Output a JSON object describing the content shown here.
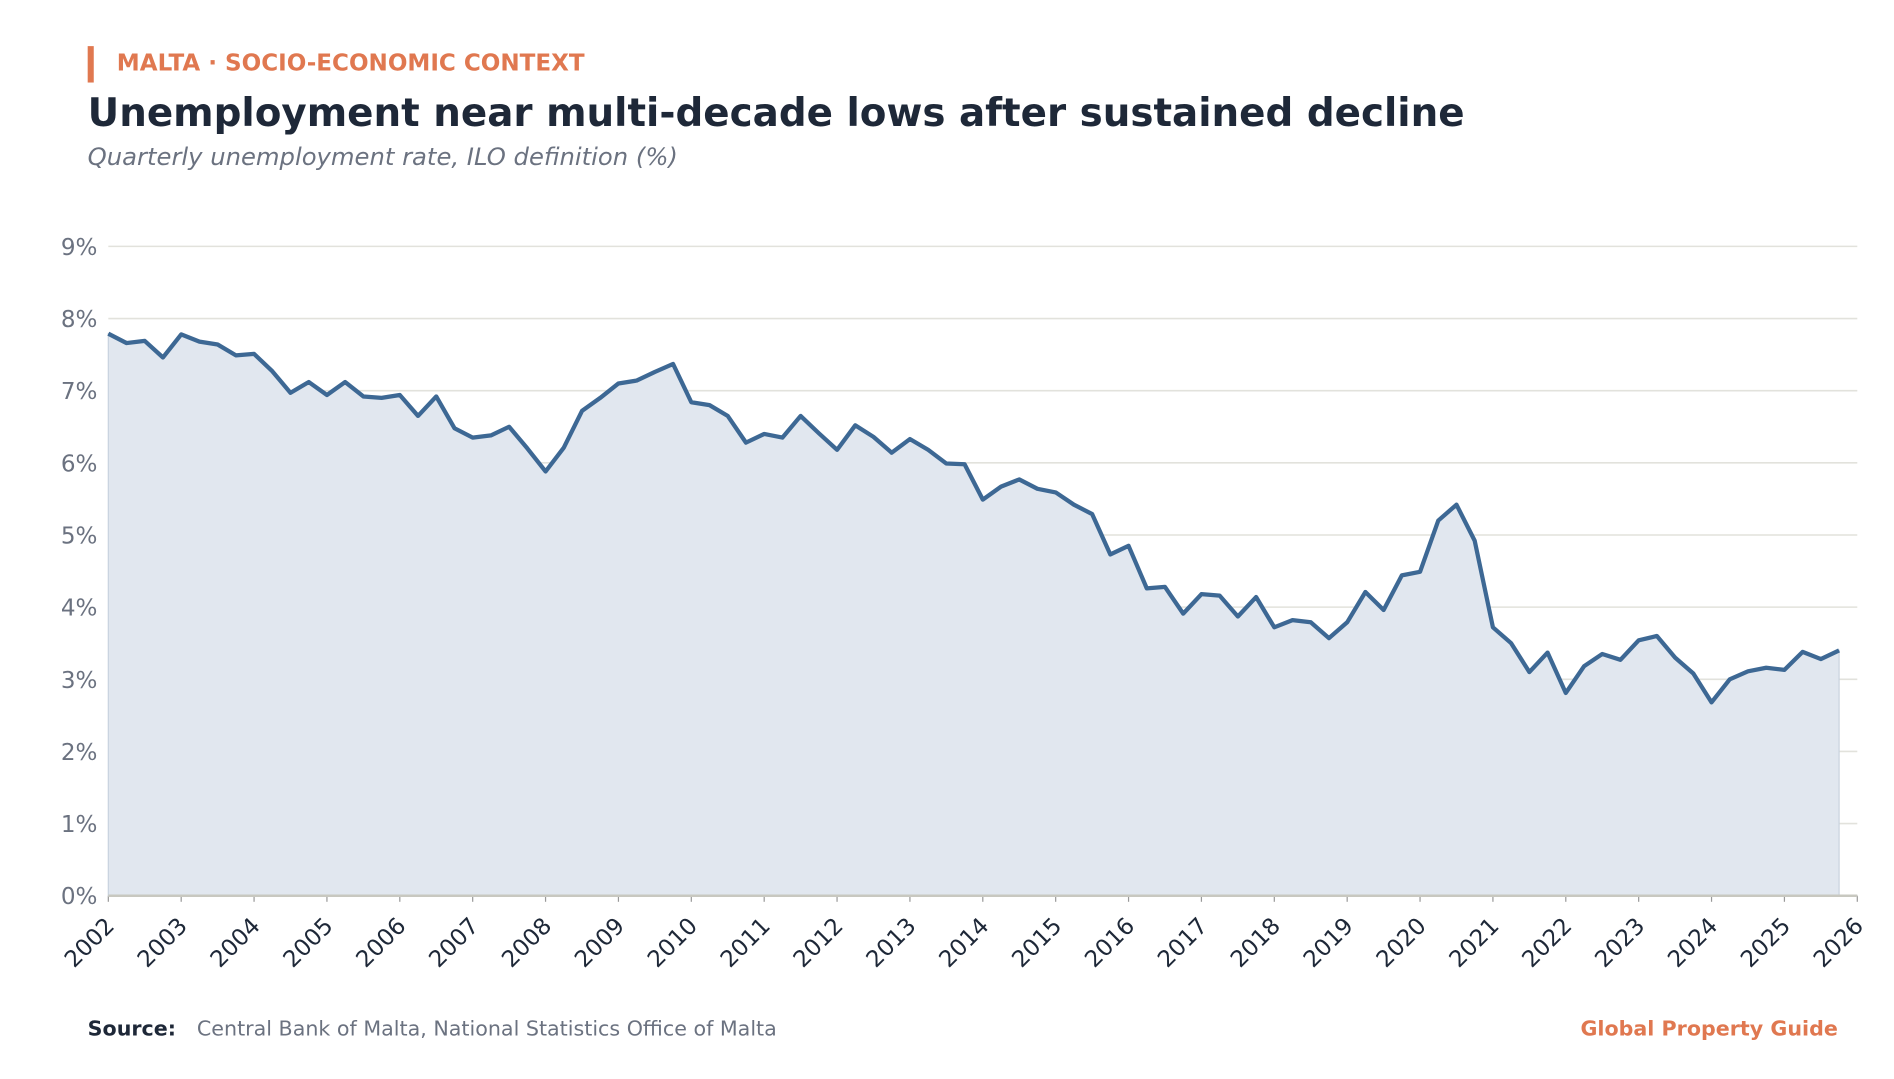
{
  "chart_data": {
    "type": "area",
    "kicker": "MALTA · SOCIO-ECONOMIC CONTEXT",
    "title": "Unemployment near multi-decade lows after sustained decline",
    "subtitle": "Quarterly unemployment rate, ILO definition (%)",
    "source_label": "Source:",
    "source": "Central Bank of Malta, National Statistics Office of Malta",
    "brand": "Global Property Guide",
    "color": "#3d6894",
    "fill": "#e1e7ef",
    "grid": true,
    "x": [
      2002,
      2002.25,
      2002.5,
      2002.75,
      2003,
      2003.25,
      2003.5,
      2003.75,
      2004,
      2004.25,
      2004.5,
      2004.75,
      2005,
      2005.25,
      2005.5,
      2005.75,
      2006,
      2006.25,
      2006.5,
      2006.75,
      2007,
      2007.25,
      2007.5,
      2007.75,
      2008,
      2008.25,
      2008.5,
      2008.75,
      2009,
      2009.25,
      2009.5,
      2009.75,
      2010,
      2010.25,
      2010.5,
      2010.75,
      2011,
      2011.25,
      2011.5,
      2011.75,
      2012,
      2012.25,
      2012.5,
      2012.75,
      2013,
      2013.25,
      2013.5,
      2013.75,
      2014,
      2014.25,
      2014.5,
      2014.75,
      2015,
      2015.25,
      2015.5,
      2015.75,
      2016,
      2016.25,
      2016.5,
      2016.75,
      2017,
      2017.25,
      2017.5,
      2017.75,
      2018,
      2018.25,
      2018.5,
      2018.75,
      2019,
      2019.25,
      2019.5,
      2019.75,
      2020,
      2020.25,
      2020.5,
      2020.75,
      2021,
      2021.25,
      2021.5,
      2021.75,
      2022,
      2022.25,
      2022.5,
      2022.75,
      2023,
      2023.25,
      2023.5,
      2023.75,
      2024,
      2024.25,
      2024.5,
      2024.75,
      2025,
      2025.25,
      2025.5,
      2025.75
    ],
    "values": [
      7.79,
      7.66,
      7.69,
      7.46,
      7.78,
      7.68,
      7.64,
      7.49,
      7.51,
      7.27,
      6.97,
      7.12,
      6.94,
      7.12,
      6.92,
      6.9,
      6.94,
      6.65,
      6.92,
      6.48,
      6.35,
      6.38,
      6.5,
      6.2,
      5.88,
      6.21,
      6.72,
      6.9,
      7.1,
      7.14,
      7.26,
      7.37,
      6.84,
      6.8,
      6.65,
      6.28,
      6.4,
      6.35,
      6.65,
      6.41,
      6.18,
      6.52,
      6.36,
      6.14,
      6.33,
      6.18,
      5.99,
      5.98,
      5.49,
      5.67,
      5.77,
      5.64,
      5.59,
      5.42,
      5.29,
      4.73,
      4.85,
      4.26,
      4.28,
      3.91,
      4.18,
      4.16,
      3.87,
      4.14,
      3.72,
      3.82,
      3.79,
      3.57,
      3.79,
      4.21,
      3.96,
      4.44,
      4.49,
      5.2,
      5.42,
      4.92,
      3.72,
      3.5,
      3.1,
      3.37,
      2.81,
      3.18,
      3.35,
      3.27,
      3.54,
      3.6,
      3.3,
      3.08,
      2.68,
      3.0,
      3.11,
      3.16,
      3.13,
      3.38,
      3.28,
      3.4
    ],
    "xlim": [
      2002,
      2026
    ],
    "xticks": [
      2002,
      2003,
      2004,
      2005,
      2006,
      2007,
      2008,
      2009,
      2010,
      2011,
      2012,
      2013,
      2014,
      2015,
      2016,
      2017,
      2018,
      2019,
      2020,
      2021,
      2022,
      2023,
      2024,
      2025,
      2026
    ],
    "ylim": [
      0,
      9
    ],
    "yticks": [
      {
        "value": 0,
        "label": "0%"
      },
      {
        "value": 1,
        "label": "1%"
      },
      {
        "value": 2,
        "label": "2%"
      },
      {
        "value": 3,
        "label": "3%"
      },
      {
        "value": 4,
        "label": "4%"
      },
      {
        "value": 5,
        "label": "5%"
      },
      {
        "value": 6,
        "label": "6%"
      },
      {
        "value": 7,
        "label": "7%"
      },
      {
        "value": 8,
        "label": "8%"
      },
      {
        "value": 9,
        "label": "9%"
      }
    ]
  }
}
